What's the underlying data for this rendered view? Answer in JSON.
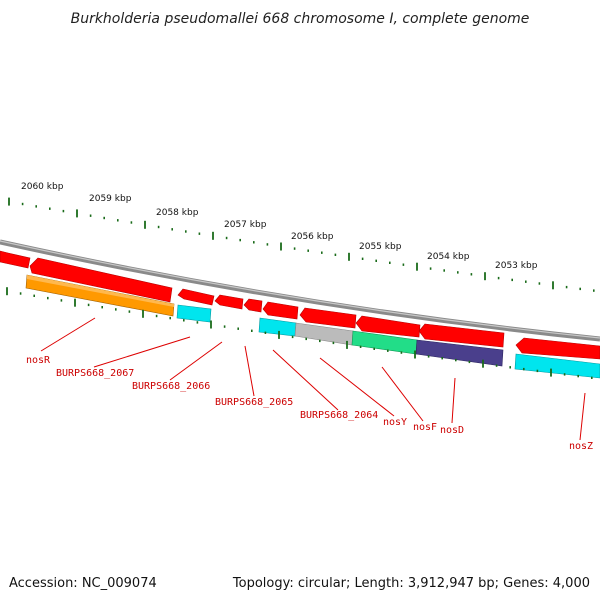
{
  "title": "Burkholderia pseudomallei 668 chromosome I, complete genome",
  "footer": {
    "accession": "Accession: NC_009074",
    "summary": "Topology: circular; Length: 3,912,947 bp; Genes: 4,000"
  },
  "scale": {
    "ticks": [
      {
        "label": "2060 kbp"
      },
      {
        "label": "2059 kbp"
      },
      {
        "label": "2058 kbp"
      },
      {
        "label": "2057 kbp"
      },
      {
        "label": "2056 kbp"
      },
      {
        "label": "2055 kbp"
      },
      {
        "label": "2054 kbp"
      },
      {
        "label": "2053 kbp"
      }
    ]
  },
  "colors": {
    "reverse_strand": "#ff0000",
    "backbone": "#888888",
    "tick_major": "#1a6b1a",
    "label_text": "#cc0000",
    "orange": "#ff9900",
    "cyan": "#00e5ee",
    "grey": "#bbbbbb",
    "green": "#22dd88",
    "purple": "#4a3f8c"
  },
  "gene_labels": [
    {
      "text": "nosR"
    },
    {
      "text": "BURPS668_2067"
    },
    {
      "text": "BURPS668_2066"
    },
    {
      "text": "BURPS668_2065"
    },
    {
      "text": "BURPS668_2064"
    },
    {
      "text": "nosY"
    },
    {
      "text": "nosF"
    },
    {
      "text": "nosD"
    },
    {
      "text": "nosZ"
    }
  ]
}
